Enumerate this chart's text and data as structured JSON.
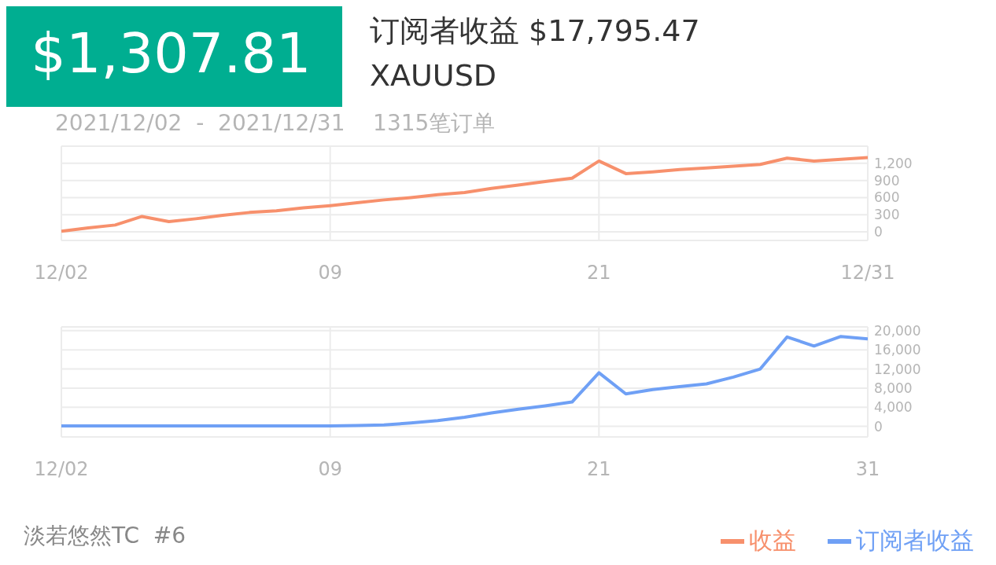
{
  "chart_data": [
    {
      "type": "line",
      "title": "订阅者收益  $17,795.47",
      "subtitle": "XAUUSD",
      "annotations": [
        "$1,307.81",
        "2021/12/02  -  2021/12/31    1315笔订单",
        "淡若悠然TC  #6"
      ],
      "categories": [
        "12/02",
        null,
        null,
        null,
        null,
        null,
        null,
        null,
        null,
        null,
        "09",
        null,
        null,
        null,
        null,
        null,
        null,
        null,
        null,
        null,
        "21",
        null,
        null,
        null,
        null,
        null,
        null,
        null,
        null,
        null,
        "12/31"
      ],
      "series": [
        {
          "name": "收益",
          "color": "#f7906c",
          "values": [
            10,
            70,
            120,
            270,
            180,
            230,
            290,
            340,
            370,
            420,
            460,
            510,
            560,
            600,
            650,
            690,
            760,
            820,
            880,
            940,
            1240,
            1020,
            1050,
            1090,
            1120,
            1150,
            1180,
            1290,
            1240,
            1270,
            1300
          ]
        }
      ],
      "ylim": [
        -150,
        1500
      ],
      "yticks": [
        0,
        300,
        600,
        900,
        {
          "value": 1200,
          "label": "1,200"
        }
      ],
      "grid": true,
      "legend": "bottom right",
      "marker": "none",
      "line_style": "solid"
    },
    {
      "type": "line",
      "categories": [
        "12/02",
        null,
        null,
        null,
        null,
        null,
        null,
        null,
        null,
        null,
        "09",
        null,
        null,
        null,
        null,
        null,
        null,
        null,
        null,
        null,
        "21",
        null,
        null,
        null,
        null,
        null,
        null,
        null,
        null,
        null,
        "31"
      ],
      "series": [
        {
          "name": "订阅者收益",
          "color": "#6fa0f5",
          "values": [
            100,
            100,
            100,
            100,
            100,
            100,
            100,
            100,
            100,
            100,
            100,
            200,
            300,
            700,
            1200,
            1900,
            2800,
            3600,
            4300,
            5100,
            11200,
            6800,
            7700,
            8300,
            8900,
            10300,
            12000,
            18700,
            16800,
            18800,
            18300
          ]
        }
      ],
      "ylim": [
        -2200,
        20800
      ],
      "yticks": [
        0,
        {
          "value": 4000,
          "label": "4,000"
        },
        {
          "value": 8000,
          "label": "8,000"
        },
        {
          "value": 12000,
          "label": "12,000"
        },
        {
          "value": 16000,
          "label": "16,000"
        },
        {
          "value": 20000,
          "label": "20,000"
        }
      ],
      "grid": true,
      "legend": "bottom right",
      "marker": "none",
      "line_style": "solid"
    }
  ]
}
